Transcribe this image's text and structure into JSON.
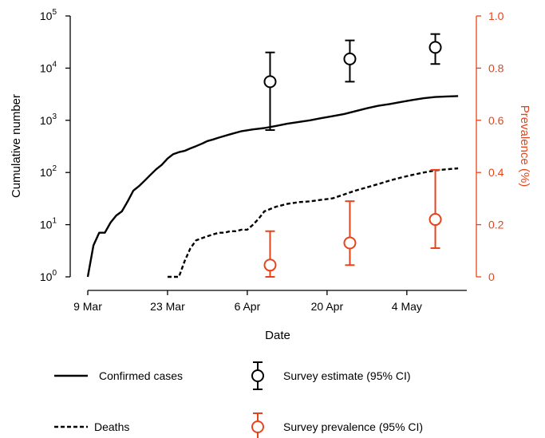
{
  "chart_data": {
    "type": "line",
    "xlabel": "Date",
    "ylabel": "Cumulative number",
    "y2label": "Prevalence (%)",
    "x_range": [
      "2020-03-09",
      "2020-05-14"
    ],
    "x_ticks": [
      {
        "date": "2020-03-09",
        "label": "9 Mar"
      },
      {
        "date": "2020-03-23",
        "label": "23 Mar"
      },
      {
        "date": "2020-04-06",
        "label": "6 Apr"
      },
      {
        "date": "2020-04-20",
        "label": "20 Apr"
      },
      {
        "date": "2020-05-04",
        "label": "4 May"
      }
    ],
    "y_left": {
      "scale": "log",
      "range": [
        1,
        100000
      ],
      "ticks": [
        {
          "value": 1,
          "base": "10",
          "exp": "0"
        },
        {
          "value": 10,
          "base": "10",
          "exp": "1"
        },
        {
          "value": 100,
          "base": "10",
          "exp": "2"
        },
        {
          "value": 1000,
          "base": "10",
          "exp": "3"
        },
        {
          "value": 10000,
          "base": "10",
          "exp": "4"
        },
        {
          "value": 100000,
          "base": "10",
          "exp": "5"
        }
      ]
    },
    "y_right": {
      "scale": "linear",
      "range": [
        0,
        1.0
      ],
      "ticks": [
        {
          "value": 0,
          "label": "0"
        },
        {
          "value": 0.2,
          "label": "0.2"
        },
        {
          "value": 0.4,
          "label": "0.4"
        },
        {
          "value": 0.6,
          "label": "0.6"
        },
        {
          "value": 0.8,
          "label": "0.8"
        },
        {
          "value": 1.0,
          "label": "1.0"
        }
      ]
    },
    "colors": {
      "black": "#000000",
      "orange": "#e8441b"
    },
    "grid": false,
    "series": [
      {
        "name": "Confirmed cases",
        "axis": "left",
        "style": "solid",
        "x": [
          "2020-03-09",
          "2020-03-10",
          "2020-03-11",
          "2020-03-12",
          "2020-03-13",
          "2020-03-14",
          "2020-03-15",
          "2020-03-16",
          "2020-03-17",
          "2020-03-18",
          "2020-03-19",
          "2020-03-20",
          "2020-03-21",
          "2020-03-22",
          "2020-03-23",
          "2020-03-24",
          "2020-03-25",
          "2020-03-26",
          "2020-03-27",
          "2020-03-28",
          "2020-03-29",
          "2020-03-30",
          "2020-03-31",
          "2020-04-01",
          "2020-04-03",
          "2020-04-05",
          "2020-04-07",
          "2020-04-09",
          "2020-04-11",
          "2020-04-13",
          "2020-04-15",
          "2020-04-17",
          "2020-04-19",
          "2020-04-21",
          "2020-04-23",
          "2020-04-25",
          "2020-04-27",
          "2020-04-29",
          "2020-05-01",
          "2020-05-03",
          "2020-05-05",
          "2020-05-07",
          "2020-05-09",
          "2020-05-11",
          "2020-05-13"
        ],
        "values": [
          1,
          4,
          7,
          7,
          11,
          15,
          18,
          28,
          45,
          55,
          70,
          90,
          115,
          140,
          185,
          225,
          245,
          260,
          290,
          320,
          355,
          400,
          430,
          465,
          540,
          620,
          670,
          710,
          780,
          860,
          930,
          1000,
          1100,
          1200,
          1320,
          1500,
          1700,
          1900,
          2050,
          2250,
          2450,
          2650,
          2800,
          2870,
          2920
        ]
      },
      {
        "name": "Deaths",
        "axis": "left",
        "style": "dashed",
        "x": [
          "2020-03-23",
          "2020-03-24",
          "2020-03-25",
          "2020-03-26",
          "2020-03-27",
          "2020-03-28",
          "2020-03-29",
          "2020-03-30",
          "2020-03-31",
          "2020-04-01",
          "2020-04-02",
          "2020-04-03",
          "2020-04-04",
          "2020-04-05",
          "2020-04-06",
          "2020-04-07",
          "2020-04-08",
          "2020-04-09",
          "2020-04-11",
          "2020-04-13",
          "2020-04-15",
          "2020-04-17",
          "2020-04-19",
          "2020-04-21",
          "2020-04-23",
          "2020-04-25",
          "2020-04-27",
          "2020-04-29",
          "2020-05-01",
          "2020-05-03",
          "2020-05-05",
          "2020-05-07",
          "2020-05-09",
          "2020-05-11",
          "2020-05-13"
        ],
        "values": [
          1,
          1,
          1,
          2,
          3.5,
          5,
          5.5,
          6,
          6.5,
          7,
          7,
          7.5,
          7.5,
          8,
          8,
          10,
          13,
          18,
          22,
          25,
          27,
          28,
          30,
          32,
          38,
          45,
          52,
          60,
          70,
          80,
          90,
          100,
          110,
          115,
          120
        ]
      }
    ],
    "error_points": [
      {
        "name": "Survey estimate (95% CI)",
        "axis": "left",
        "color": "black",
        "points": [
          {
            "x": "2020-04-10",
            "y": 5500,
            "low": 650,
            "high": 20000
          },
          {
            "x": "2020-04-24",
            "y": 15000,
            "low": 5500,
            "high": 34000
          },
          {
            "x": "2020-05-09",
            "y": 25000,
            "low": 12000,
            "high": 45000
          }
        ]
      },
      {
        "name": "Survey prevalence (95% CI)",
        "axis": "right",
        "color": "orange",
        "points": [
          {
            "x": "2020-04-10",
            "y": 0.045,
            "low": 0.0,
            "high": 0.175
          },
          {
            "x": "2020-04-24",
            "y": 0.13,
            "low": 0.045,
            "high": 0.29
          },
          {
            "x": "2020-05-09",
            "y": 0.22,
            "low": 0.11,
            "high": 0.41
          }
        ]
      }
    ],
    "legend": {
      "placement": "bottom",
      "items": [
        {
          "label": "Confirmed cases",
          "kind": "line-solid",
          "color": "black"
        },
        {
          "label": "Survey estimate (95% CI)",
          "kind": "errorbar",
          "color": "black"
        },
        {
          "label": "Deaths",
          "kind": "line-dashed",
          "color": "black"
        },
        {
          "label": "Survey prevalence (95% CI)",
          "kind": "errorbar",
          "color": "orange"
        }
      ]
    }
  }
}
